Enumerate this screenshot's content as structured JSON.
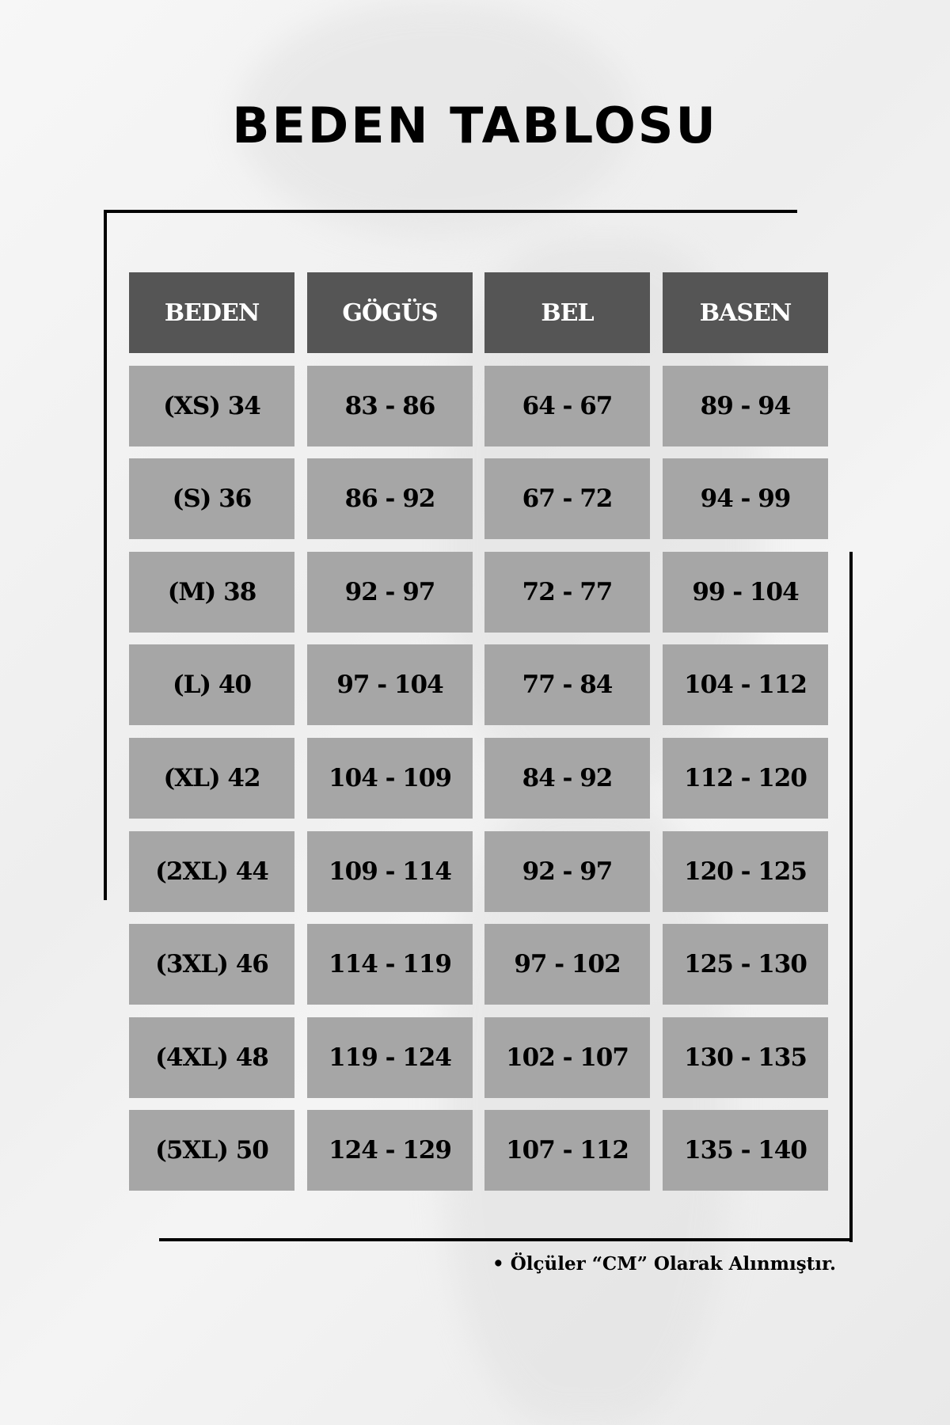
{
  "title": "BEDEN TABLOSU",
  "table": {
    "headers": [
      "BEDEN",
      "GÖGÜS",
      "BEL",
      "BASEN"
    ],
    "rows": [
      [
        "(XS) 34",
        "83 - 86",
        "64 - 67",
        "89 - 94"
      ],
      [
        "(S) 36",
        "86 - 92",
        "67 - 72",
        "94 - 99"
      ],
      [
        "(M) 38",
        "92 - 97",
        "72 - 77",
        "99 - 104"
      ],
      [
        "(L) 40",
        "97 - 104",
        "77 - 84",
        "104 - 112"
      ],
      [
        "(XL) 42",
        "104 - 109",
        "84 - 92",
        "112 - 120"
      ],
      [
        "(2XL) 44",
        "109 - 114",
        "92 - 97",
        "120 - 125"
      ],
      [
        "(3XL) 46",
        "114 - 119",
        "97 - 102",
        "125 - 130"
      ],
      [
        "(4XL) 48",
        "119 - 124",
        "102 - 107",
        "130 - 135"
      ],
      [
        "(5XL) 50",
        "124 - 129",
        "107 - 112",
        "135 - 140"
      ]
    ]
  },
  "note": "• Ölçüler “CM” Olarak Alınmıştır.",
  "colors": {
    "header_bg": "#555555",
    "cell_bg": "#a6a6a6",
    "frame": "#000000"
  }
}
